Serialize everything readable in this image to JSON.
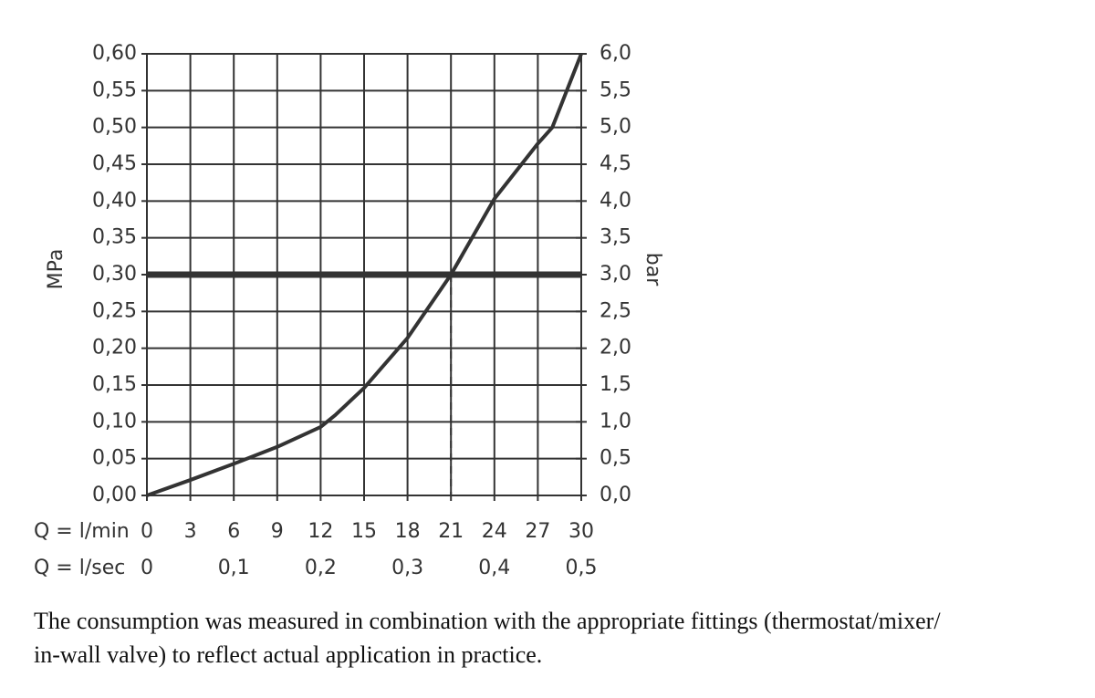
{
  "chart_data": {
    "type": "line",
    "ylabel": "MPa",
    "y2label": "bar",
    "xlabel": "Q = l/min",
    "x2label": "Q = l/sec",
    "x": [
      0,
      3,
      6,
      9,
      12,
      13,
      15,
      18,
      21,
      24,
      27,
      28,
      30
    ],
    "series": [
      {
        "color": "#333333",
        "values": [
          0,
          0.021,
          0.043,
          0.066,
          0.093,
          0.109,
          0.146,
          0.214,
          0.3,
          0.403,
          0.478,
          0.5,
          0.6
        ]
      }
    ],
    "reference": {
      "x": 21,
      "y": 0.3
    },
    "xlim": [
      0,
      30
    ],
    "xticks": [
      0,
      3,
      6,
      9,
      12,
      15,
      18,
      21,
      24,
      27,
      30
    ],
    "x2lim": [
      0,
      0.5
    ],
    "x2ticks": [
      0,
      {
        "value": 0.1,
        "label": "0,1"
      },
      {
        "value": 0.2,
        "label": "0,2"
      },
      {
        "value": 0.3,
        "label": "0,3"
      },
      {
        "value": 0.4,
        "label": "0,4"
      },
      {
        "value": 0.5,
        "label": "0,5"
      }
    ],
    "ylim": [
      0,
      0.6
    ],
    "yticks": [
      {
        "value": 0,
        "label": "0,00"
      },
      {
        "value": 0.05,
        "label": "0,05"
      },
      {
        "value": 0.1,
        "label": "0,10"
      },
      {
        "value": 0.15,
        "label": "0,15"
      },
      {
        "value": 0.2,
        "label": "0,20"
      },
      {
        "value": 0.25,
        "label": "0,25"
      },
      {
        "value": 0.3,
        "label": "0,30"
      },
      {
        "value": 0.35,
        "label": "0,35"
      },
      {
        "value": 0.4,
        "label": "0,40"
      },
      {
        "value": 0.45,
        "label": "0,45"
      },
      {
        "value": 0.5,
        "label": "0,50"
      },
      {
        "value": 0.55,
        "label": "0,55"
      },
      {
        "value": 0.6,
        "label": "0,60"
      }
    ],
    "y2lim": [
      0,
      6
    ],
    "y2ticks": [
      {
        "value": 0,
        "label": "0,0"
      },
      {
        "value": 0.5,
        "label": "0,5"
      },
      {
        "value": 1,
        "label": "1,0"
      },
      {
        "value": 1.5,
        "label": "1,5"
      },
      {
        "value": 2,
        "label": "2,0"
      },
      {
        "value": 2.5,
        "label": "2,5"
      },
      {
        "value": 3,
        "label": "3,0"
      },
      {
        "value": 3.5,
        "label": "3,5"
      },
      {
        "value": 4,
        "label": "4,0"
      },
      {
        "value": 4.5,
        "label": "4,5"
      },
      {
        "value": 5,
        "label": "5,0"
      },
      {
        "value": 5.5,
        "label": "5,5"
      },
      {
        "value": 6,
        "label": "6,0"
      }
    ],
    "grid": true
  },
  "caption": [
    "The consumption was measured in combination with the appropriate fittings (thermostat/mixer/",
    "in-wall valve) to reflect actual application in practice."
  ]
}
